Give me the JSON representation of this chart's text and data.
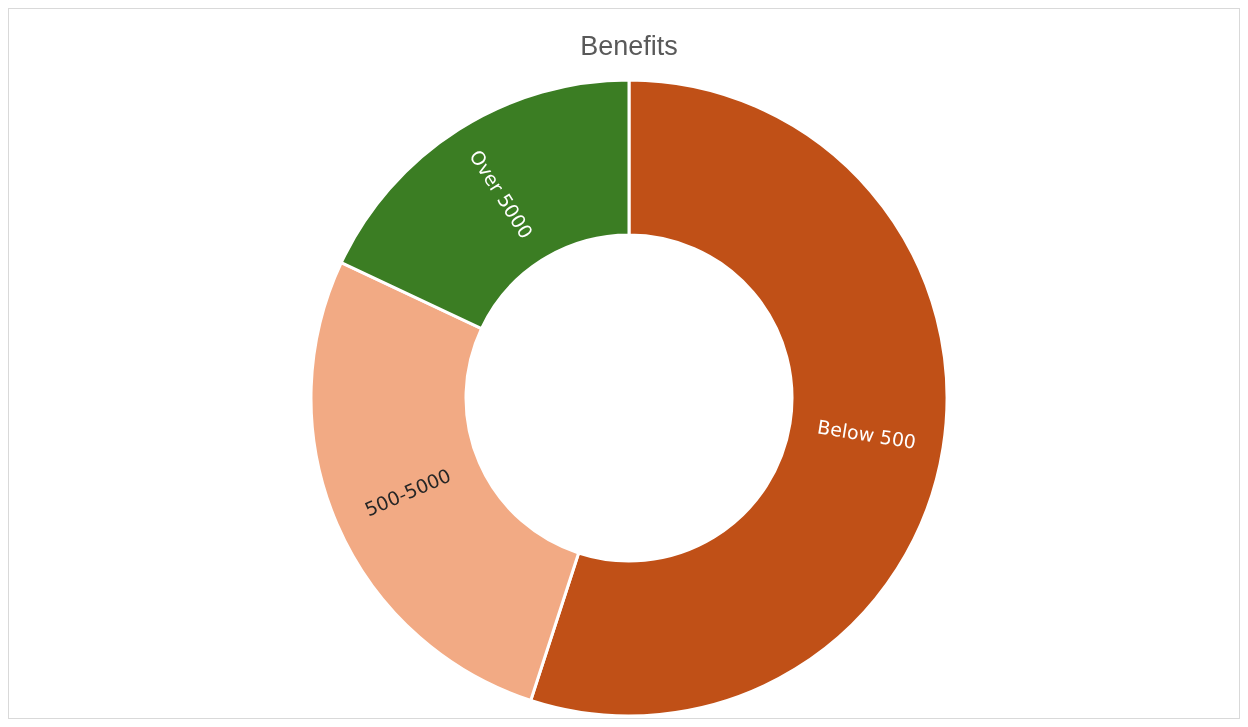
{
  "chart_data": {
    "type": "donut",
    "title": "Benefits",
    "categories": [
      "Below 500",
      "500-5000",
      "Over 5000"
    ],
    "values": [
      55,
      27,
      18
    ],
    "colors": [
      "#c05017",
      "#f2aa84",
      "#3b7d23"
    ]
  }
}
